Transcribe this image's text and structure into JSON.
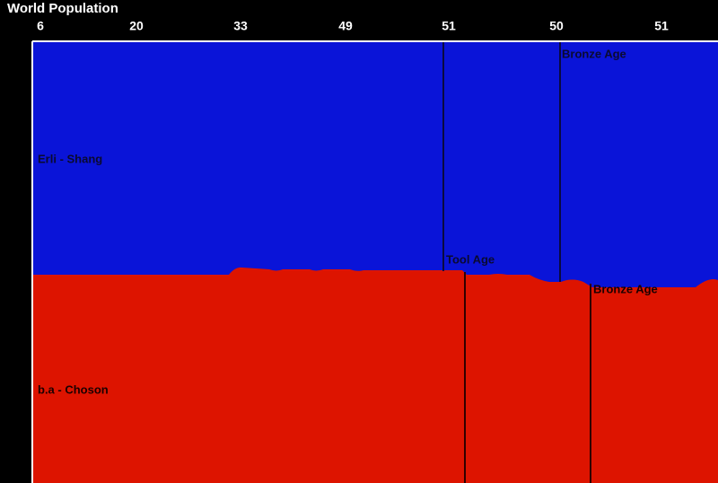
{
  "title": "World Population",
  "ticks": [
    "6",
    "20",
    "33",
    "49",
    "51",
    "50",
    "51"
  ],
  "regions": [
    {
      "label": "Erli - Shang"
    },
    {
      "label": "b.a - Choson"
    }
  ],
  "events": [
    {
      "label": "Bronze Age"
    },
    {
      "label": "Tool Age"
    },
    {
      "label": "Bronze Age"
    }
  ]
}
